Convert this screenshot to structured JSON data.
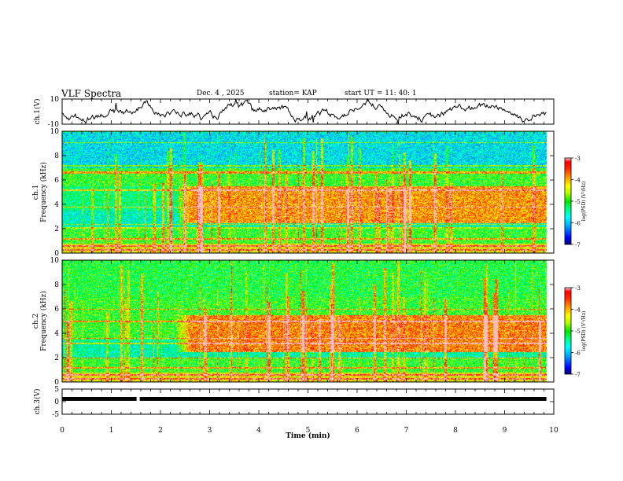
{
  "header": {
    "title": "VLF Spectra",
    "date": "Dec. 4 , 2025",
    "station": "station= KAP",
    "start": "start UT = 11: 40: 1"
  },
  "colorbar": {
    "label": "log(PSD) (V²/Hz)",
    "ticks": [
      "-3",
      "-4",
      "-5",
      "-6",
      "-7"
    ],
    "colors": [
      "#000080",
      "#0000ff",
      "#00bfff",
      "#00ffff",
      "#00ff80",
      "#00ff00",
      "#b0ff00",
      "#ffff00",
      "#ffb000",
      "#ff5000",
      "#ff0000",
      "#ffffff"
    ]
  },
  "chart_data": [
    {
      "type": "line",
      "panel": "ch1-waveform",
      "ylabel": "ch.1(V)",
      "yticks": [
        "10",
        "-10"
      ],
      "ylim": [
        -10,
        10
      ],
      "xlim": [
        0,
        10
      ],
      "x_end": 9.85,
      "description_values": {
        "mean": 0,
        "amplitude_approx": 5
      }
    },
    {
      "type": "heatmap",
      "panel": "ch1-spectrogram",
      "ylabel": "ch.1 Frequency (kHz)",
      "yticks": [
        "0",
        "2",
        "4",
        "6",
        "8",
        "10"
      ],
      "ylim": [
        0,
        10
      ],
      "xlim": [
        0,
        10
      ],
      "x_end": 9.85,
      "zlim": [
        -7,
        -3
      ],
      "bands": [
        {
          "f": [
            0,
            0.8
          ],
          "level": -4.3
        },
        {
          "f": [
            0.8,
            2.0
          ],
          "level": -5.0
        },
        {
          "f": [
            2.0,
            3.5
          ],
          "level": -5.6
        },
        {
          "f": [
            3.5,
            5.5
          ],
          "level": -5.3
        },
        {
          "f": [
            5.5,
            7.0
          ],
          "level": -5.0
        },
        {
          "f": [
            7.0,
            10
          ],
          "level": -5.8
        }
      ],
      "enhancement": {
        "t": [
          2.3,
          9.85
        ],
        "f": [
          2.5,
          5.5
        ],
        "level": -3.9
      },
      "lines_khz": [
        0.3,
        0.6,
        1.2,
        2.1,
        2.4,
        3.8,
        5.2,
        6.6,
        6.7,
        7.2,
        9.1
      ]
    },
    {
      "type": "heatmap",
      "panel": "ch2-spectrogram",
      "ylabel": "ch.2 Frequency (kHz)",
      "yticks": [
        "0",
        "2",
        "4",
        "6",
        "8",
        "10"
      ],
      "ylim": [
        0,
        10
      ],
      "xlim": [
        0,
        10
      ],
      "x_end": 9.85,
      "zlim": [
        -7,
        -3
      ],
      "bands": [
        {
          "f": [
            0,
            0.8
          ],
          "level": -4.3
        },
        {
          "f": [
            0.8,
            2.0
          ],
          "level": -5.0
        },
        {
          "f": [
            2.0,
            3.5
          ],
          "level": -5.5
        },
        {
          "f": [
            3.5,
            5.5
          ],
          "level": -5.0
        },
        {
          "f": [
            5.5,
            7.0
          ],
          "level": -5.0
        },
        {
          "f": [
            7.0,
            10
          ],
          "level": -5.1
        }
      ],
      "enhancement": {
        "t": [
          2.3,
          9.85
        ],
        "f": [
          2.5,
          5.5
        ],
        "level": -3.8
      },
      "lines_khz": [
        0.3,
        0.6,
        1.2,
        2.0,
        3.2,
        3.6,
        5.0,
        6.0
      ]
    },
    {
      "type": "line",
      "panel": "ch3-waveform",
      "ylabel": "ch.3(V)",
      "yticks": [
        "5",
        "0",
        "-5"
      ],
      "ylim": [
        -5,
        5
      ],
      "xlim": [
        0,
        10
      ],
      "value": 0,
      "gap_at": 1.53
    }
  ],
  "xaxis": {
    "label": "Time (min)",
    "ticks": [
      "0",
      "1",
      "2",
      "3",
      "4",
      "5",
      "6",
      "7",
      "8",
      "9",
      "10"
    ]
  }
}
